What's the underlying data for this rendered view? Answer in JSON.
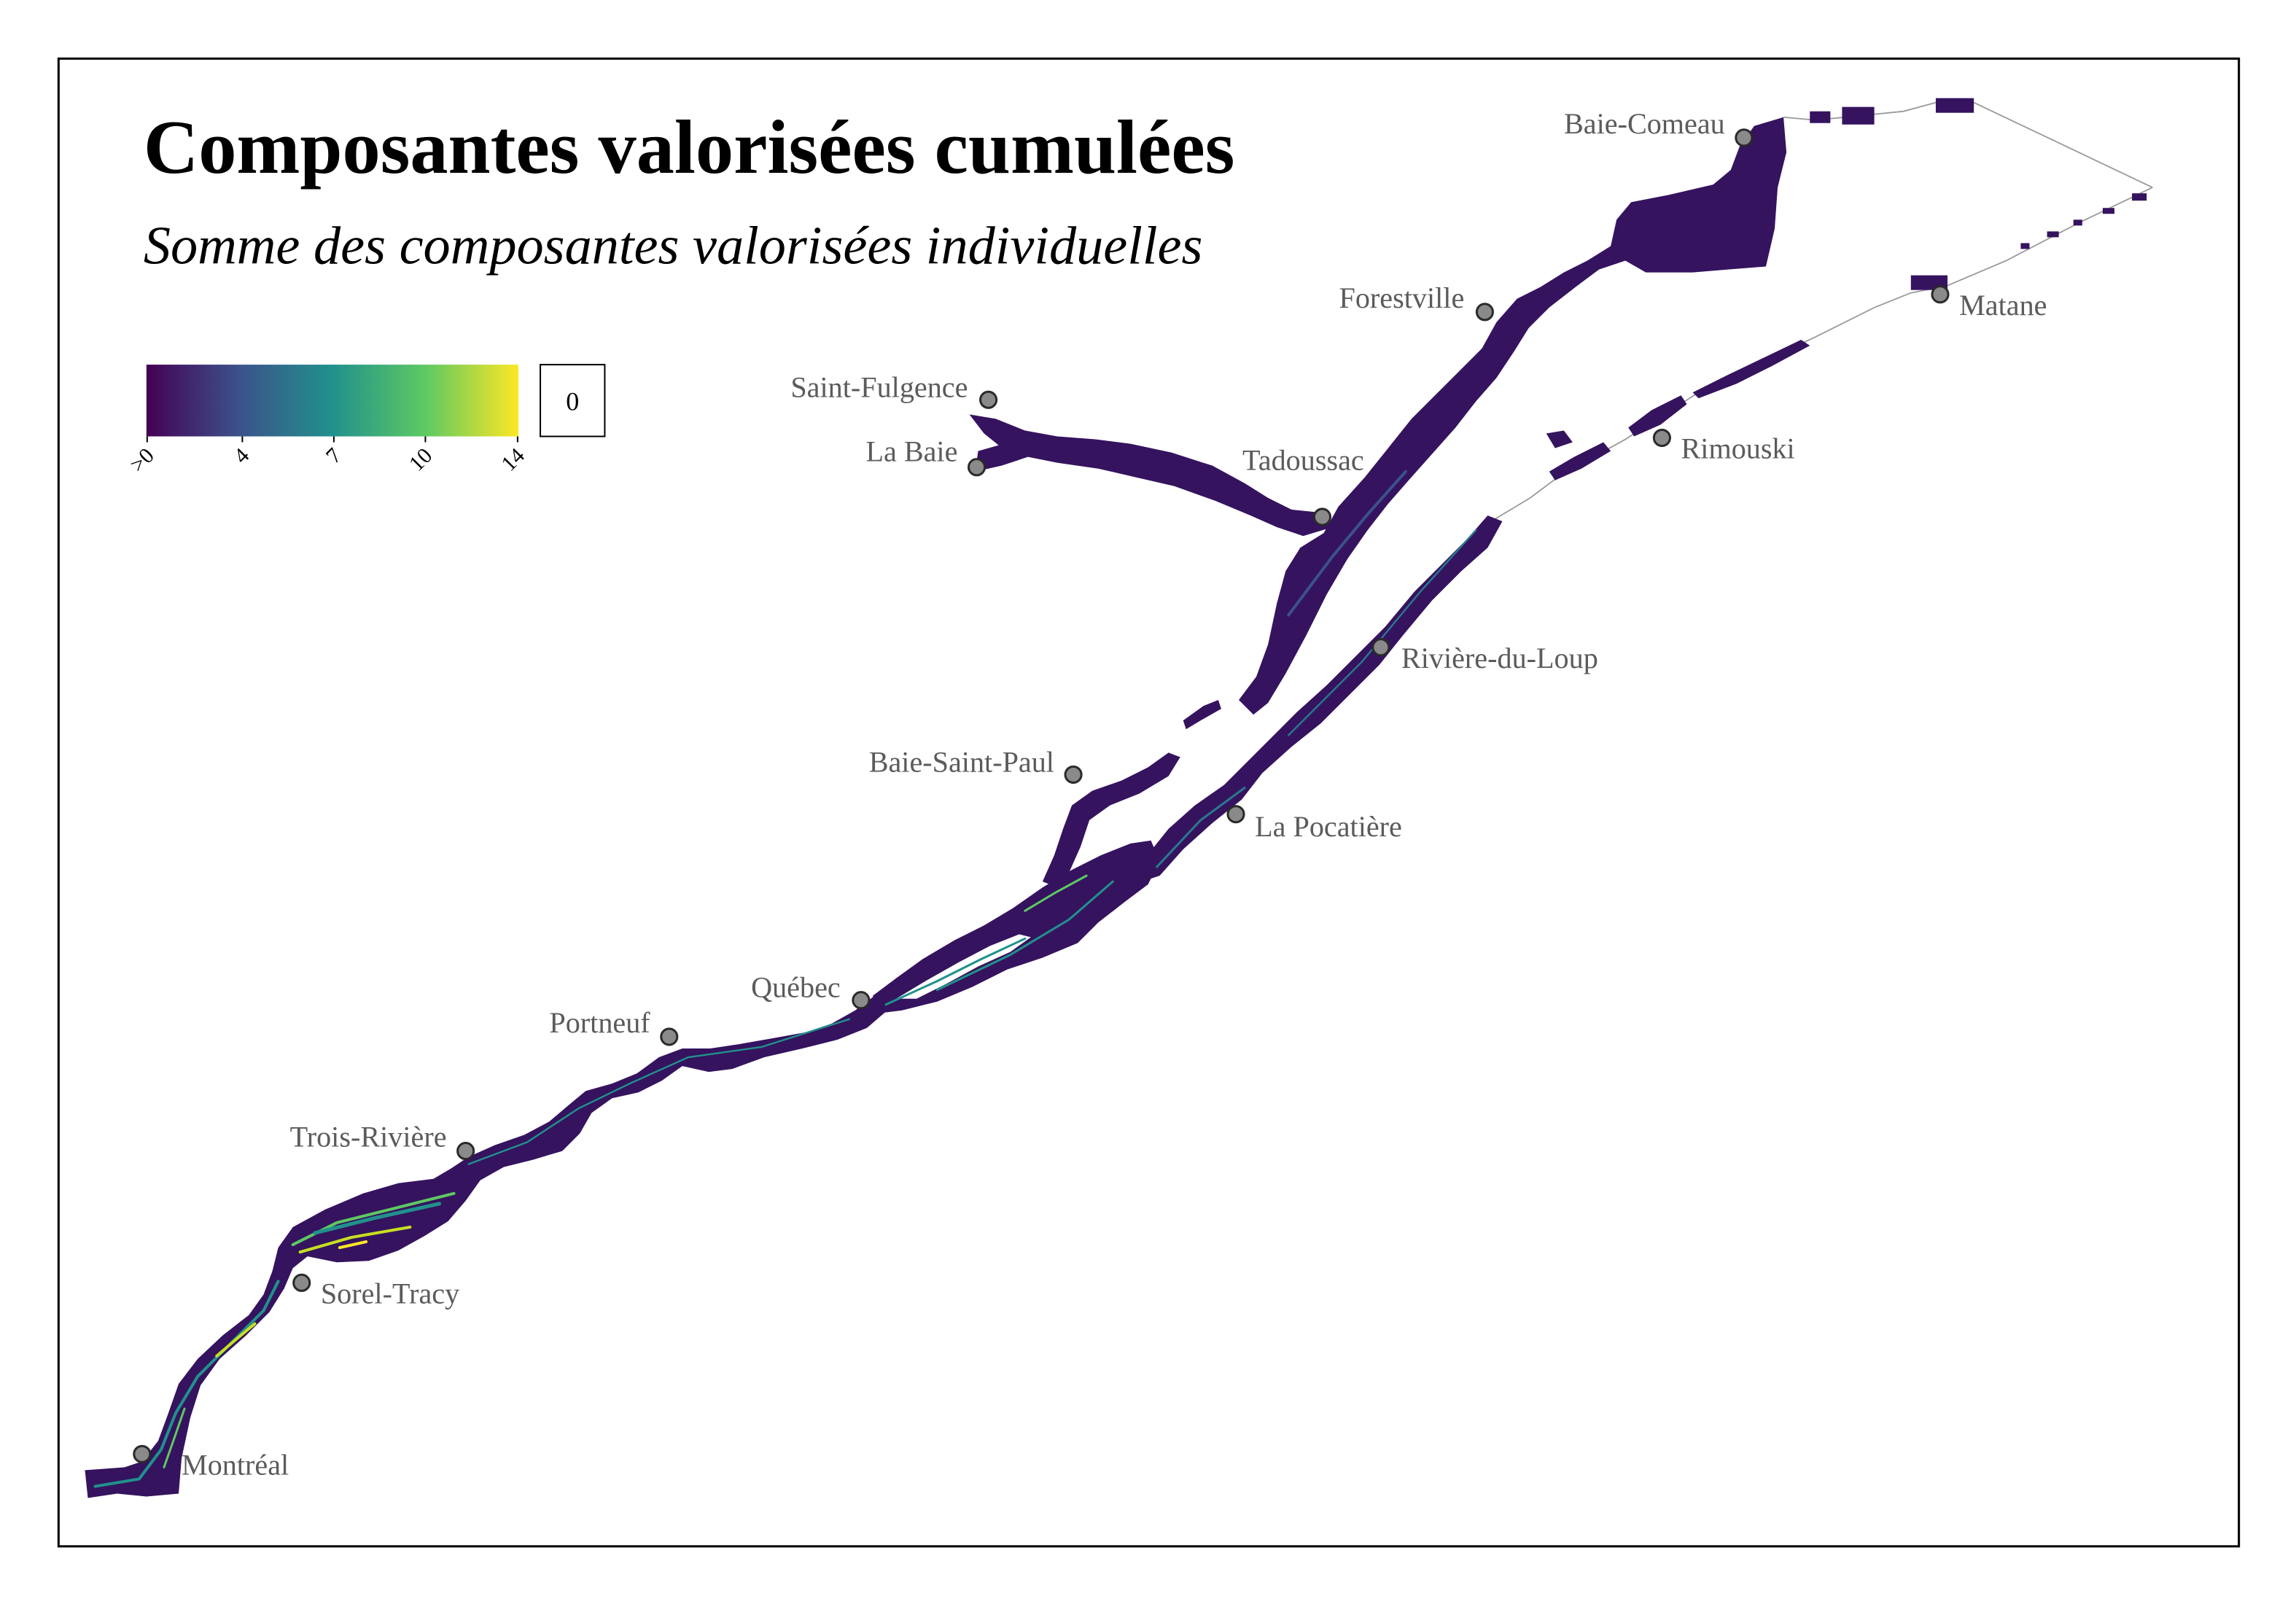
{
  "title": "Composantes valorisées cumulées",
  "subtitle": "Somme des composantes valorisées individuelles",
  "legend": {
    "ticks": [
      ">0",
      "4",
      "7",
      "10",
      "14"
    ],
    "na_box_label": "0",
    "gradient": [
      "#440154",
      "#3b528b",
      "#21918c",
      "#5ec962",
      "#fde725"
    ]
  },
  "cities": [
    {
      "name": "Baie-Comeau"
    },
    {
      "name": "Forestville"
    },
    {
      "name": "Matane"
    },
    {
      "name": "Saint-Fulgence"
    },
    {
      "name": "La Baie"
    },
    {
      "name": "Tadoussac"
    },
    {
      "name": "Rimouski"
    },
    {
      "name": "Rivière-du-Loup"
    },
    {
      "name": "Baie-Saint-Paul"
    },
    {
      "name": "La Pocatière"
    },
    {
      "name": "Québec"
    },
    {
      "name": "Portneuf"
    },
    {
      "name": "Trois-Rivière"
    },
    {
      "name": "Sorel-Tracy"
    },
    {
      "name": "Montréal"
    }
  ],
  "colors": {
    "river_fill": "#35135f",
    "route_line": "#9a9a9a"
  }
}
